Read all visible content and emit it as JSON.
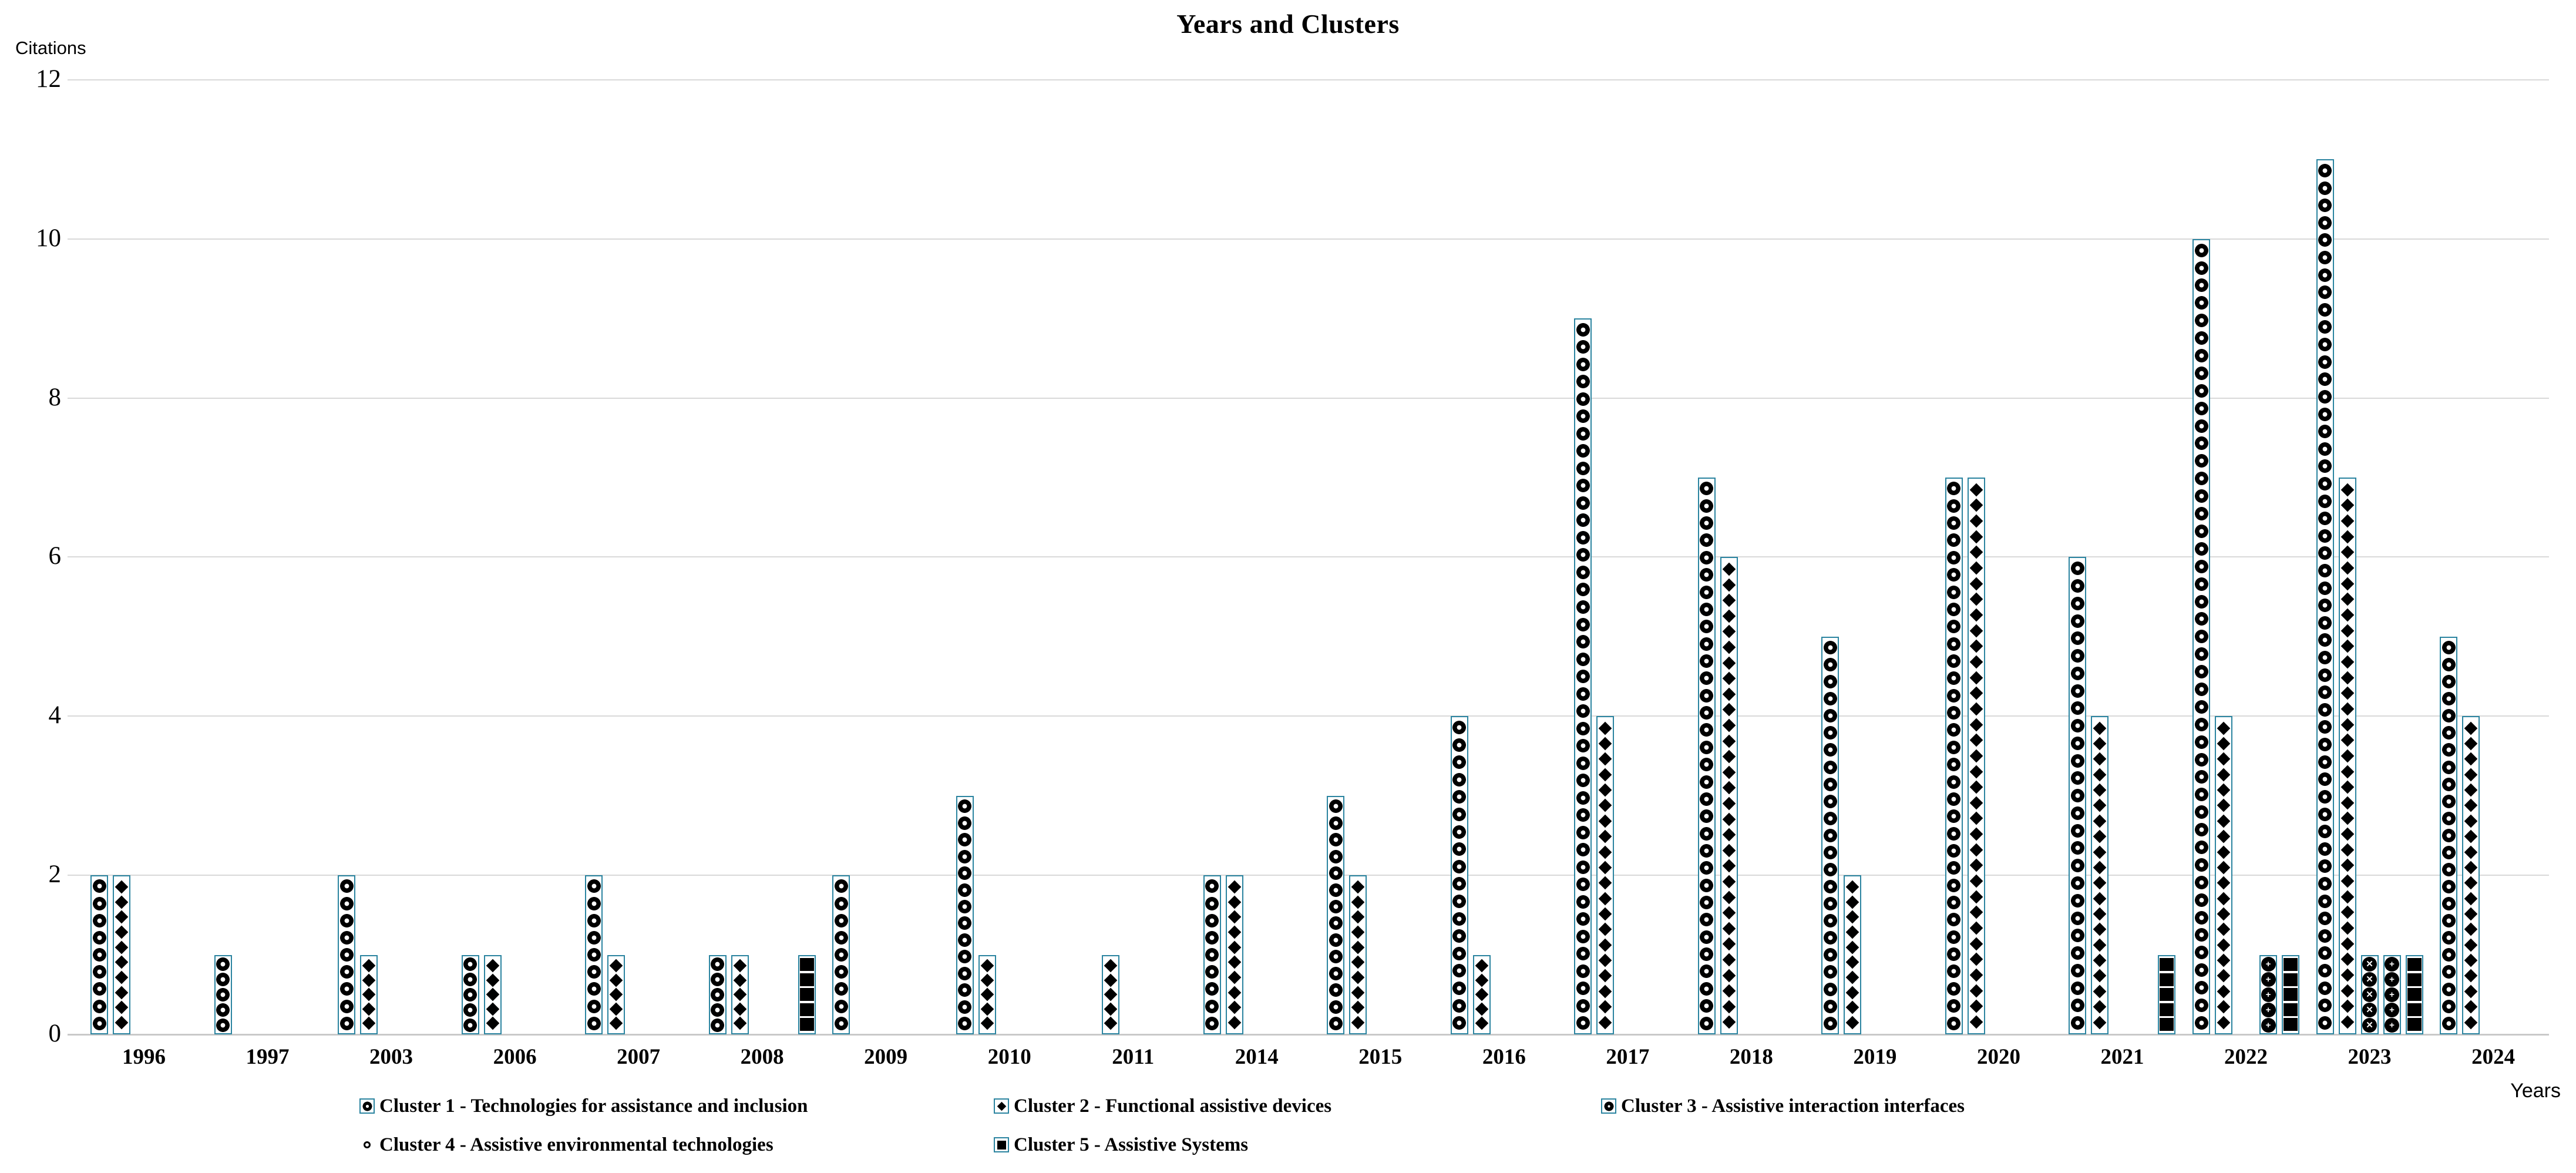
{
  "chart_data": {
    "type": "bar",
    "title": "Years and Clusters",
    "xlabel": "Years",
    "ylabel": "Citations",
    "ylim": [
      0,
      12
    ],
    "yticks": [
      0,
      2,
      4,
      6,
      8,
      10,
      12
    ],
    "grid": true,
    "legend_position": "bottom",
    "categories": [
      "1996",
      "1997",
      "2003",
      "2006",
      "2007",
      "2008",
      "2009",
      "2010",
      "2011",
      "2014",
      "2015",
      "2016",
      "2017",
      "2018",
      "2019",
      "2020",
      "2021",
      "2022",
      "2023",
      "2024"
    ],
    "series": [
      {
        "name": "Cluster 1 - Technologies for assistance and inclusion",
        "pattern": "ring",
        "glyph": "",
        "values": [
          2,
          1,
          2,
          1,
          2,
          1,
          2,
          3,
          0,
          2,
          3,
          4,
          9,
          7,
          5,
          7,
          6,
          10,
          11,
          5
        ]
      },
      {
        "name": "Cluster 2 - Functional assistive devices",
        "pattern": "diamond",
        "glyph": "",
        "values": [
          2,
          0,
          1,
          1,
          1,
          1,
          0,
          1,
          1,
          2,
          2,
          1,
          4,
          6,
          2,
          7,
          4,
          4,
          7,
          4
        ]
      },
      {
        "name": "Cluster 3 - Assistive interaction interfaces",
        "pattern": "circle-x",
        "glyph": "✕",
        "values": [
          0,
          0,
          0,
          0,
          0,
          0,
          0,
          0,
          0,
          0,
          0,
          0,
          0,
          0,
          0,
          0,
          0,
          0,
          1,
          0
        ]
      },
      {
        "name": "Cluster 4 - Assistive environmental technologies",
        "pattern": "circle-plus",
        "glyph": "+",
        "values": [
          0,
          0,
          0,
          0,
          0,
          0,
          0,
          0,
          0,
          0,
          0,
          0,
          0,
          0,
          0,
          0,
          0,
          1,
          1,
          0
        ]
      },
      {
        "name": "Cluster 5 - Assistive Systems",
        "pattern": "square",
        "glyph": "",
        "values": [
          0,
          0,
          0,
          0,
          0,
          1,
          0,
          0,
          0,
          0,
          0,
          0,
          0,
          0,
          0,
          0,
          1,
          1,
          1,
          0
        ]
      }
    ],
    "colors": {
      "bar_border": "#2b84a0",
      "pattern": "#000000",
      "gridline": "#d9d9d9",
      "axis_line": "#c9c9c9",
      "text": "#000000"
    }
  }
}
